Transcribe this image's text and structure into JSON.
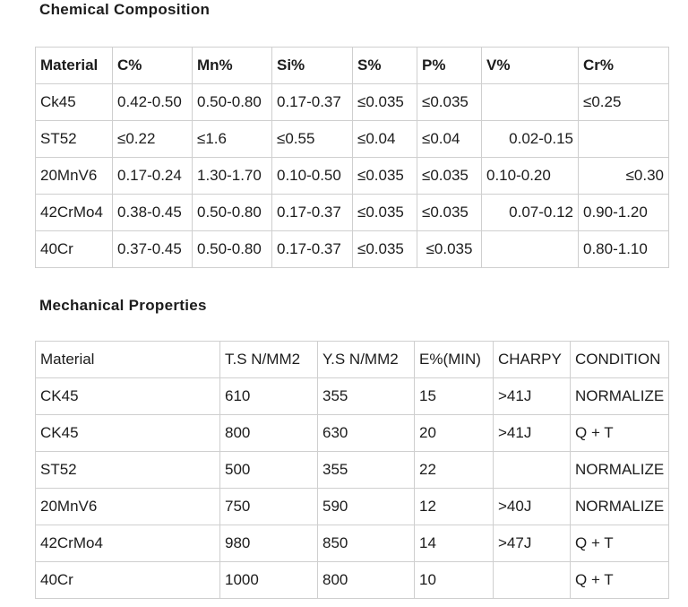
{
  "page": {
    "background_color": "#ffffff",
    "text_color": "#1c1c1c",
    "table_border_color": "#cfcfcf"
  },
  "sections": [
    {
      "title": "Chemical Composition",
      "table": {
        "headers": [
          "Material",
          "C%",
          "Mn%",
          "Si%",
          "S%",
          "P%",
          "V%",
          "Cr%"
        ],
        "rows": [
          [
            "Ck45",
            "0.42-0.50",
            "0.50-0.80",
            "0.17-0.37",
            "≤0.035",
            "≤0.035",
            "",
            "≤0.25"
          ],
          [
            "ST52",
            "≤0.22",
            "≤1.6",
            "≤0.55",
            "≤0.04",
            "≤0.04",
            {
              "t": "0.02-0.15",
              "align": "right"
            },
            ""
          ],
          [
            "20MnV6",
            "0.17-0.24",
            "1.30-1.70",
            "0.10-0.50",
            "≤0.035",
            "≤0.035",
            "0.10-0.20",
            {
              "t": "≤0.30",
              "align": "right"
            }
          ],
          [
            "42CrMo4",
            "0.38-0.45",
            "0.50-0.80",
            "0.17-0.37",
            "≤0.035",
            "≤0.035",
            {
              "t": "0.07-0.12",
              "align": "right"
            },
            "0.90-1.20"
          ],
          [
            "40Cr",
            "0.37-0.45",
            "0.50-0.80",
            "0.17-0.37",
            "≤0.035",
            {
              "t": "≤0.035",
              "align": "center"
            },
            "",
            "0.80-1.10"
          ]
        ]
      }
    },
    {
      "title": "Mechanical Properties",
      "table": {
        "headers": [
          "Material",
          "T.S N/MM2",
          "Y.S N/MM2",
          "E%(MIN)",
          "CHARPY",
          "CONDITION"
        ],
        "rows": [
          [
            "CK45",
            "610",
            "355",
            "15",
            ">41J",
            "NORMALIZE"
          ],
          [
            "CK45",
            "800",
            "630",
            "20",
            ">41J",
            "Q + T"
          ],
          [
            "ST52",
            "500",
            "355",
            "22",
            "",
            "NORMALIZE"
          ],
          [
            "20MnV6",
            "750",
            "590",
            "12",
            ">40J",
            "NORMALIZE"
          ],
          [
            "42CrMo4",
            "980",
            "850",
            "14",
            ">47J",
            "Q + T"
          ],
          [
            "40Cr",
            "1000",
            "800",
            "10",
            "",
            "Q + T"
          ]
        ]
      }
    }
  ]
}
